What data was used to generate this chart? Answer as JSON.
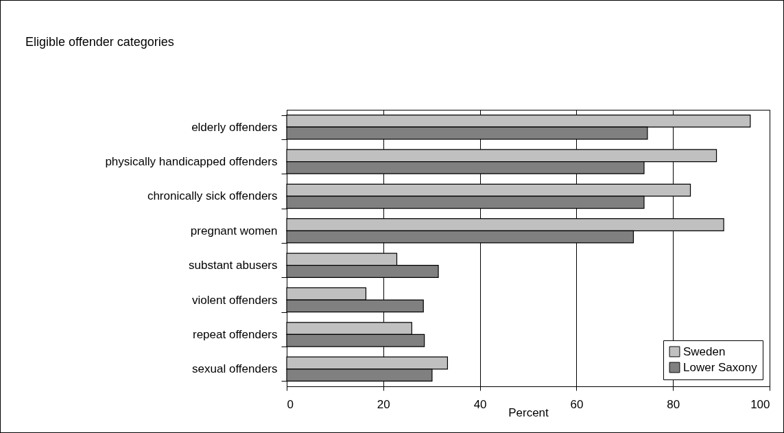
{
  "chart_data": {
    "type": "bar",
    "orientation": "horizontal",
    "title": "Eligible offender categories",
    "xlabel": "Percent",
    "categories": [
      "elderly offenders",
      "physically handicapped offenders",
      "chronically sick offenders",
      "pregnant women",
      "substant abusers",
      "violent offenders",
      "repeat offenders",
      "sexual offenders"
    ],
    "series": [
      {
        "name": "Sweden",
        "color": "#c0c0c0",
        "values": [
          96,
          89,
          83.6,
          90.5,
          22.8,
          16.4,
          25.9,
          33.3
        ]
      },
      {
        "name": "Lower Saxony",
        "color": "#808080",
        "values": [
          74.7,
          74,
          74,
          71.8,
          31.4,
          28.3,
          28.5,
          30.1
        ]
      }
    ],
    "xlim": [
      0,
      100
    ],
    "xticks": [
      0,
      20,
      40,
      60,
      80,
      100
    ],
    "grid": "x",
    "legend": "bottom right"
  }
}
